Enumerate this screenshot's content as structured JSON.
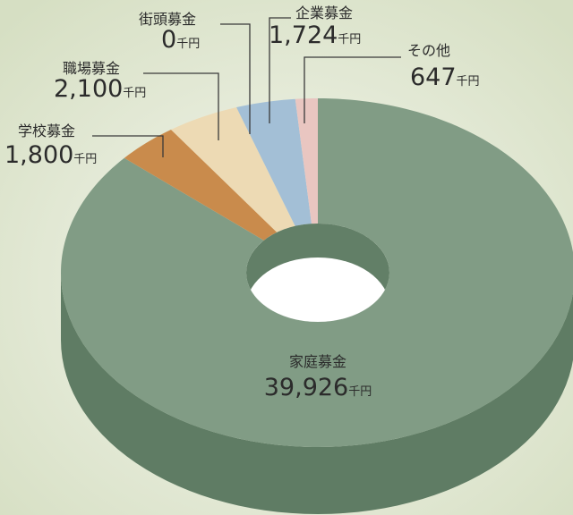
{
  "chart_data": {
    "type": "pie",
    "donut": true,
    "unit": "千円",
    "categories": [
      "家庭募金",
      "学校募金",
      "職場募金",
      "街頭募金",
      "企業募金",
      "その他"
    ],
    "values": [
      39926,
      1800,
      2100,
      0,
      1724,
      647
    ],
    "value_labels": [
      "39,926",
      "1,800",
      "2,100",
      "0",
      "1,724",
      "647"
    ],
    "colors": [
      "#819c85",
      "#c98b4c",
      "#eddab4",
      "#e6c59c",
      "#a3bfd6",
      "#e9c6c1"
    ]
  }
}
